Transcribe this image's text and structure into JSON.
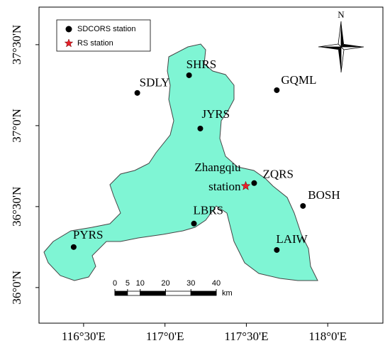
{
  "map": {
    "xlim": [
      116.226,
      118.339
    ],
    "ylim": [
      35.78,
      37.732
    ],
    "xticks": [
      {
        "value": 116.5,
        "label": "116°30'E"
      },
      {
        "value": 117,
        "label": "117°0'E"
      },
      {
        "value": 117.5,
        "label": "117°30'E"
      },
      {
        "value": 118,
        "label": "118°0'E"
      }
    ],
    "yticks": [
      {
        "value": 36,
        "label": "36°0'N"
      },
      {
        "value": 36.5,
        "label": "36°30'N"
      },
      {
        "value": 37,
        "label": "37°0'N"
      },
      {
        "value": 37.5,
        "label": "37°30'N"
      }
    ],
    "legend": {
      "entries": [
        {
          "label": "SDCORS station",
          "marker": "circle"
        },
        {
          "label": "RS station",
          "marker": "star"
        }
      ]
    },
    "north_label": "N",
    "stations": [
      {
        "name": "SHRS",
        "lon": 117.148,
        "lat": 37.311
      },
      {
        "name": "SDLY",
        "lon": 116.83,
        "lat": 37.202
      },
      {
        "name": "GQML",
        "lon": 117.687,
        "lat": 37.219
      },
      {
        "name": "JYRS",
        "lon": 117.217,
        "lat": 36.982
      },
      {
        "name": "ZQRS",
        "lon": 117.548,
        "lat": 36.645
      },
      {
        "name": "BOSH",
        "lon": 117.848,
        "lat": 36.504
      },
      {
        "name": "LBRS",
        "lon": 117.178,
        "lat": 36.395
      },
      {
        "name": "LAIW",
        "lon": 117.687,
        "lat": 36.232
      },
      {
        "name": "PYRS",
        "lon": 116.439,
        "lat": 36.25
      }
    ],
    "rs_station": {
      "label_lines": [
        "Zhangqiu",
        "station"
      ],
      "lon": 117.496,
      "lat": 36.627,
      "color": "#e8202a"
    },
    "scale_bar": {
      "ticks": [
        0,
        5,
        10,
        20,
        30,
        40
      ],
      "unit": "km"
    },
    "region_color": "#7ff5d4"
  }
}
